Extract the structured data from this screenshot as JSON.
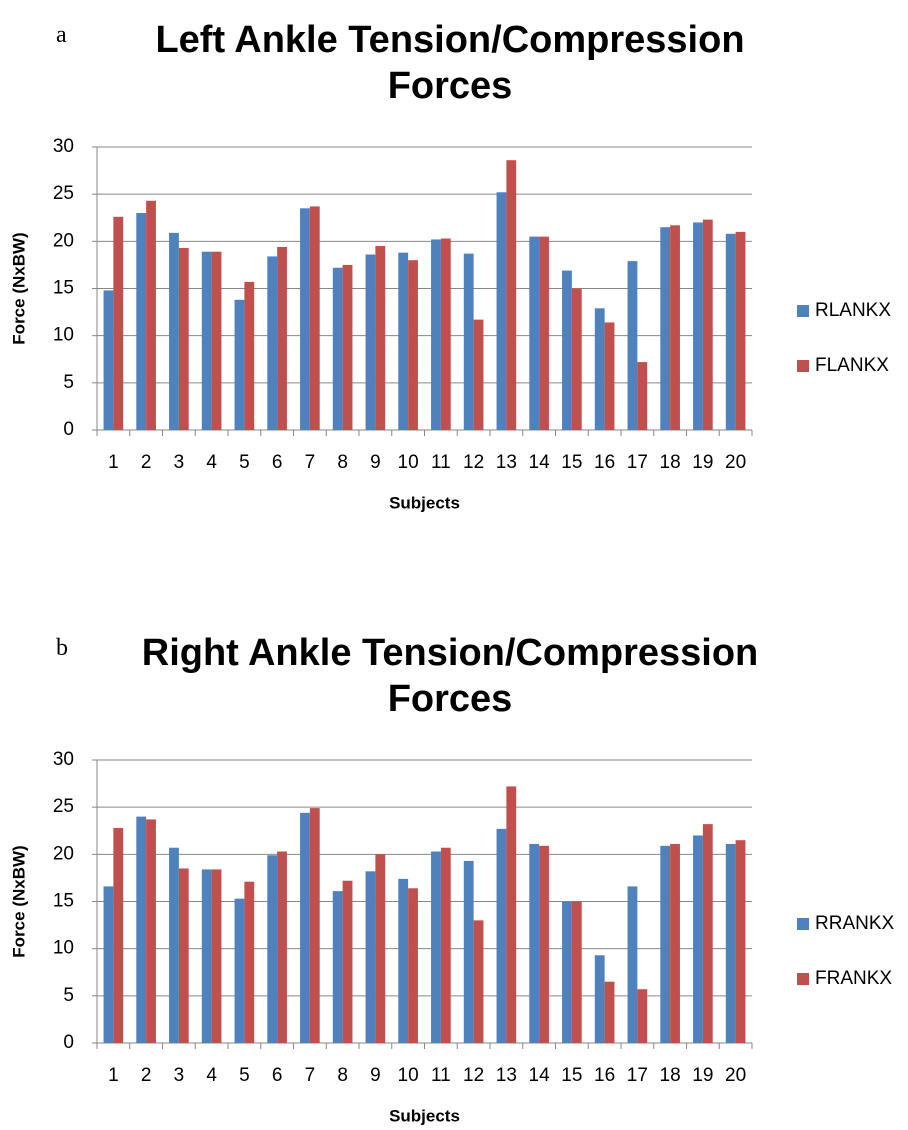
{
  "chart_data": [
    {
      "type": "bar",
      "panel_label": "a",
      "title": "Left Ankle Tension/Compression Forces",
      "x_label": "Subjects",
      "y_label": "Force (NxBW)",
      "categories": [
        "1",
        "2",
        "3",
        "4",
        "5",
        "6",
        "7",
        "8",
        "9",
        "10",
        "11",
        "12",
        "13",
        "14",
        "15",
        "16",
        "17",
        "18",
        "19",
        "20"
      ],
      "series": [
        {
          "name": "RLANKX",
          "color": "#4f81bd",
          "values": [
            14.8,
            23.0,
            20.9,
            18.9,
            13.8,
            18.4,
            23.5,
            17.2,
            18.6,
            18.8,
            20.2,
            18.7,
            25.2,
            20.5,
            16.9,
            12.9,
            17.9,
            21.5,
            22.0,
            20.8
          ]
        },
        {
          "name": "FLANKX",
          "color": "#c0504d",
          "values": [
            22.6,
            24.3,
            19.3,
            18.9,
            15.7,
            19.4,
            23.7,
            17.5,
            19.5,
            18.0,
            20.3,
            11.7,
            28.6,
            20.5,
            15.0,
            11.4,
            7.2,
            21.7,
            22.3,
            21.0
          ]
        }
      ],
      "ylim": [
        0,
        30
      ],
      "yticks": [
        0,
        5,
        10,
        15,
        20,
        25,
        30
      ],
      "grid": true,
      "legend": "right"
    },
    {
      "type": "bar",
      "panel_label": "b",
      "title": "Right Ankle Tension/Compression Forces",
      "x_label": "Subjects",
      "y_label": "Force (NxBW)",
      "categories": [
        "1",
        "2",
        "3",
        "4",
        "5",
        "6",
        "7",
        "8",
        "9",
        "10",
        "11",
        "12",
        "13",
        "14",
        "15",
        "16",
        "17",
        "18",
        "19",
        "20"
      ],
      "series": [
        {
          "name": "RRANKX",
          "color": "#4f81bd",
          "values": [
            16.6,
            24.0,
            20.7,
            18.4,
            15.3,
            19.9,
            24.4,
            16.1,
            18.2,
            17.4,
            20.3,
            19.3,
            22.7,
            21.1,
            15.0,
            9.3,
            16.6,
            20.9,
            22.0,
            21.1
          ]
        },
        {
          "name": "FRANKX",
          "color": "#c0504d",
          "values": [
            22.8,
            23.7,
            18.5,
            18.4,
            17.1,
            20.3,
            24.9,
            17.2,
            20.0,
            16.4,
            20.7,
            13.0,
            27.2,
            20.9,
            15.0,
            6.5,
            5.7,
            21.1,
            23.2,
            21.5
          ]
        }
      ],
      "ylim": [
        0,
        30
      ],
      "yticks": [
        0,
        5,
        10,
        15,
        20,
        25,
        30
      ],
      "grid": true,
      "legend": "right"
    }
  ]
}
